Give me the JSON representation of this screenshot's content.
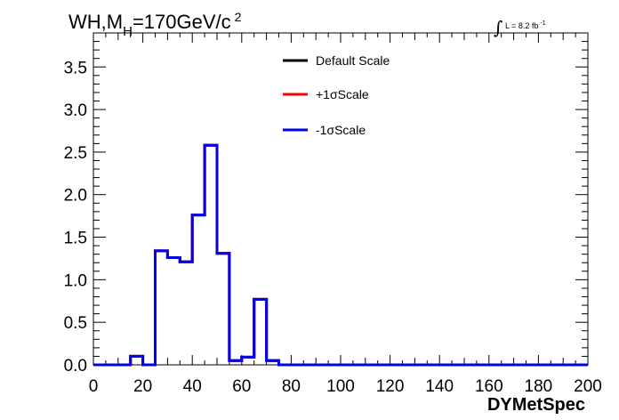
{
  "chart_data": {
    "type": "line",
    "title": "WH,M",
    "title_sub": "H",
    "title_rest": "=170GeV/c",
    "title_sup": "2",
    "lumi_label": "L = 8.2 fb",
    "lumi_sup": "-1",
    "xlabel": "DYMetSpec",
    "xlim": [
      0,
      200
    ],
    "ylim": [
      0,
      3.9
    ],
    "x_ticks": [
      0,
      20,
      40,
      60,
      80,
      100,
      120,
      140,
      160,
      180,
      200
    ],
    "y_ticks": [
      0.0,
      0.5,
      1.0,
      1.5,
      2.0,
      2.5,
      3.0,
      3.5
    ],
    "y_tick_labels": [
      "0.0",
      "0.5",
      "1.0",
      "1.5",
      "2.0",
      "2.5",
      "3.0",
      "3.5"
    ],
    "bin_edges": [
      0,
      5,
      10,
      15,
      20,
      25,
      30,
      35,
      40,
      45,
      50,
      55,
      60,
      65,
      70,
      75,
      80,
      85,
      90,
      95,
      100,
      105,
      110,
      115,
      120,
      125,
      130,
      135,
      140,
      145,
      150,
      155,
      160,
      165,
      170,
      175,
      180,
      185,
      190,
      195,
      200
    ],
    "series": [
      {
        "name": "Default Scale",
        "color": "#000000",
        "values": [
          0,
          0,
          0,
          0.1,
          0,
          1.34,
          1.26,
          1.21,
          1.76,
          2.58,
          1.31,
          0.05,
          0.09,
          0.77,
          0.05,
          0,
          0,
          0,
          0,
          0,
          0,
          0,
          0,
          0,
          0,
          0,
          0,
          0,
          0,
          0,
          0,
          0,
          0,
          0,
          0,
          0,
          0,
          0,
          0,
          0
        ]
      },
      {
        "name": "+1σScale",
        "color": "#ff0000",
        "values": [
          0,
          0,
          0,
          0.1,
          0,
          1.34,
          1.26,
          1.21,
          1.76,
          2.58,
          1.31,
          0.05,
          0.09,
          0.77,
          0.05,
          0,
          0,
          0,
          0,
          0,
          0,
          0,
          0,
          0,
          0,
          0,
          0,
          0,
          0,
          0,
          0,
          0,
          0,
          0,
          0,
          0,
          0,
          0,
          0,
          0
        ]
      },
      {
        "name": "-1σScale",
        "color": "#0000ee",
        "values": [
          0,
          0,
          0,
          0.1,
          0,
          1.34,
          1.26,
          1.21,
          1.76,
          2.58,
          1.31,
          0.05,
          0.09,
          0.77,
          0.05,
          0,
          0,
          0,
          0,
          0,
          0,
          0,
          0,
          0,
          0,
          0,
          0,
          0,
          0,
          0,
          0,
          0,
          0,
          0,
          0,
          0,
          0,
          0,
          0,
          0
        ]
      }
    ],
    "legend_position": "top-center",
    "grid": false
  }
}
